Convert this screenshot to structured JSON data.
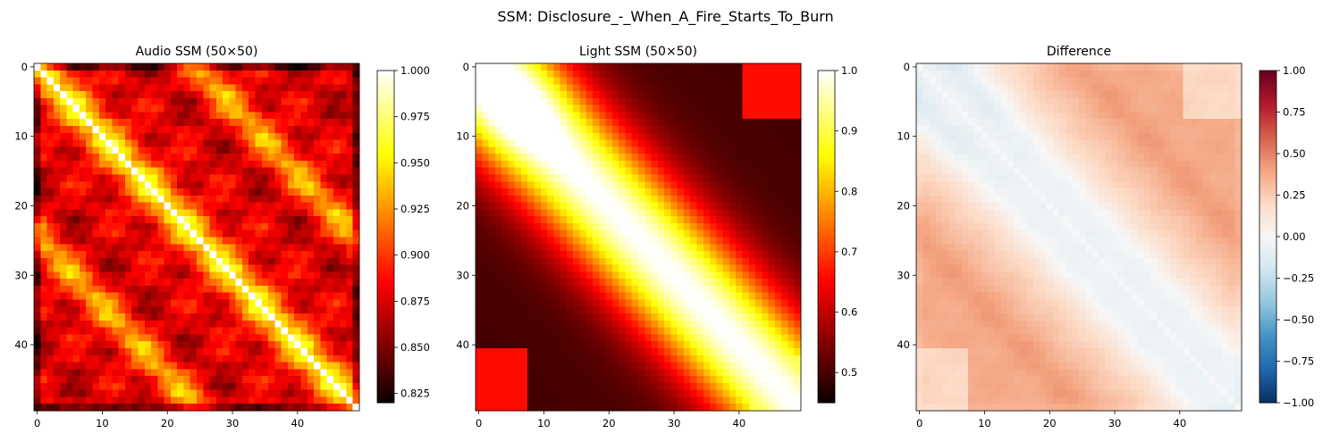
{
  "figure": {
    "suptitle": "SSM: Disclosure_-_When_A_Fire_Starts_To_Burn"
  },
  "chart_data": [
    {
      "type": "heatmap",
      "title": "Audio SSM (50×50)",
      "size": 50,
      "colormap": "hot",
      "vmin": 0.82,
      "vmax": 1.0,
      "x_ticks": [
        0,
        10,
        20,
        30,
        40
      ],
      "y_ticks": [
        0,
        10,
        20,
        30,
        40
      ],
      "colorbar_ticks": [
        0.825,
        0.85,
        0.875,
        0.9,
        0.925,
        0.95,
        0.975,
        1.0
      ],
      "colorbar_tick_labels": [
        "0.825",
        "0.850",
        "0.875",
        "0.900",
        "0.925",
        "0.950",
        "0.975",
        "1.000"
      ]
    },
    {
      "type": "heatmap",
      "title": "Light SSM (50×50)",
      "size": 50,
      "colormap": "hot",
      "vmin": 0.45,
      "vmax": 1.0,
      "x_ticks": [
        0,
        10,
        20,
        30,
        40
      ],
      "y_ticks": [
        0,
        10,
        20,
        30,
        40
      ],
      "colorbar_ticks": [
        0.5,
        0.6,
        0.7,
        0.8,
        0.9,
        1.0
      ],
      "colorbar_tick_labels": [
        "0.5",
        "0.6",
        "0.7",
        "0.8",
        "0.9",
        "1.0"
      ]
    },
    {
      "type": "heatmap",
      "title": "Difference",
      "size": 50,
      "colormap": "RdBu_r",
      "vmin": -1.0,
      "vmax": 1.0,
      "x_ticks": [
        0,
        10,
        20,
        30,
        40
      ],
      "y_ticks": [
        0,
        10,
        20,
        30,
        40
      ],
      "colorbar_ticks": [
        -1.0,
        -0.75,
        -0.5,
        -0.25,
        0.0,
        0.25,
        0.5,
        0.75,
        1.0
      ],
      "colorbar_tick_labels": [
        "−1.00",
        "−0.75",
        "−0.50",
        "−0.25",
        "0.00",
        "0.25",
        "0.50",
        "0.75",
        "1.00"
      ]
    }
  ]
}
